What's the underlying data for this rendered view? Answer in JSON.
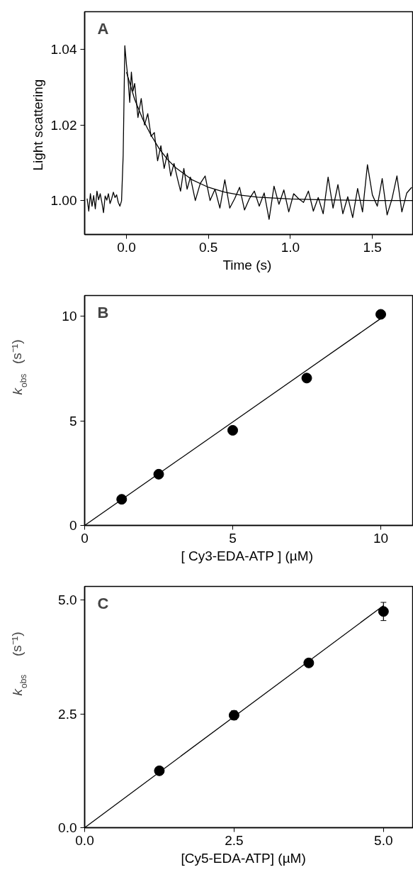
{
  "chart_data": [
    {
      "type": "line",
      "xlabel": "Time  (s)",
      "ylabel": "Light  scattering",
      "annotations": [
        "A"
      ],
      "xlim": [
        -0.255,
        1.75
      ],
      "ylim": [
        0.991,
        1.05
      ],
      "xticks": [
        {
          "value": 0,
          "label": "0.0"
        },
        0.5,
        {
          "value": 1,
          "label": "1.0"
        },
        1.5
      ],
      "yticks": [
        {
          "value": 1,
          "label": "1.00"
        },
        1.02,
        1.04
      ],
      "grid": false,
      "series": [
        {
          "color": "#000000",
          "x": [
            -0.24,
            -0.23,
            -0.22,
            -0.21,
            -0.2,
            -0.19,
            -0.18,
            -0.17,
            -0.16,
            -0.15,
            -0.14,
            -0.13,
            -0.12,
            -0.11,
            -0.1,
            -0.09,
            -0.08,
            -0.07,
            -0.06,
            -0.05,
            -0.04,
            -0.03,
            -0.02,
            -0.01,
            0.0,
            0.01,
            0.02,
            0.03,
            0.04,
            0.05,
            0.07,
            0.09,
            0.11,
            0.13,
            0.15,
            0.17,
            0.19,
            0.21,
            0.23,
            0.25,
            0.27,
            0.29,
            0.31,
            0.33,
            0.35,
            0.37,
            0.39,
            0.42,
            0.45,
            0.48,
            0.51,
            0.54,
            0.57,
            0.6,
            0.63,
            0.66,
            0.69,
            0.72,
            0.75,
            0.78,
            0.81,
            0.84,
            0.87,
            0.9,
            0.93,
            0.96,
            0.99,
            1.02,
            1.05,
            1.08,
            1.11,
            1.14,
            1.17,
            1.2,
            1.23,
            1.26,
            1.29,
            1.32,
            1.35,
            1.38,
            1.41,
            1.44,
            1.47,
            1.5,
            1.53,
            1.56,
            1.59,
            1.62,
            1.65,
            1.68,
            1.71,
            1.74
          ],
          "values": [
            1.0005,
            0.9972,
            1.0018,
            0.9985,
            1.0013,
            0.9978,
            1.0025,
            1.0002,
            1.0018,
            0.9995,
            0.9968,
            1.0012,
            1.0001,
            1.0018,
            0.9992,
            1.0005,
            1.0022,
            1.0008,
            1.0015,
            0.9995,
            0.9985,
            0.9999,
            1.012,
            1.041,
            1.036,
            1.032,
            1.026,
            1.034,
            1.029,
            1.031,
            1.022,
            1.027,
            1.02,
            1.023,
            1.017,
            1.018,
            1.0105,
            1.0145,
            1.0085,
            1.0125,
            1.0065,
            1.0098,
            1.006,
            1.0025,
            1.0085,
            1.003,
            1.0062,
            1.0,
            1.0045,
            1.0065,
            1.0,
            1.003,
            0.998,
            1.0055,
            0.998,
            1.0005,
            1.0035,
            0.9975,
            1.0005,
            1.0025,
            0.9985,
            1.002,
            0.995,
            1.0038,
            0.999,
            1.0028,
            0.997,
            1.0018,
            1.0005,
            0.9995,
            1.0025,
            0.9972,
            1.0008,
            0.9965,
            1.0062,
            0.998,
            1.0042,
            0.9965,
            1.001,
            0.9955,
            1.0032,
            0.997,
            1.0095,
            1.0015,
            0.9985,
            1.0058,
            0.9962,
            1.0005,
            1.0065,
            0.997,
            1.002,
            1.0035
          ]
        },
        {
          "color": "#000000",
          "x": [
            0.0,
            0.05,
            0.1,
            0.15,
            0.2,
            0.25,
            0.3,
            0.4,
            0.5,
            0.6,
            0.7,
            0.8,
            1.0,
            1.2,
            1.5,
            1.75
          ],
          "values": [
            1.034,
            1.0268,
            1.0215,
            1.0173,
            1.0137,
            1.0109,
            1.0087,
            1.0055,
            1.0035,
            1.0022,
            1.0014,
            1.0009,
            1.0004,
            1.0002,
            1.0,
            1.0
          ]
        }
      ]
    },
    {
      "type": "scatter",
      "xlabel": "[ Cy3-EDA-ATP ]  (µM)",
      "ylabel": "k$_{obs}$  (s⁻¹)",
      "annotations": [
        "B"
      ],
      "xlim": [
        0,
        11.1
      ],
      "ylim": [
        0,
        11
      ],
      "xticks": [
        0,
        5,
        10
      ],
      "yticks": [
        0,
        5,
        10
      ],
      "grid": false,
      "marker": "circle",
      "series": [
        {
          "color": "#000000",
          "x": [
            1.25,
            2.5,
            5,
            7.5,
            10
          ],
          "values": [
            1.25,
            2.45,
            4.55,
            7.05,
            10.1
          ]
        },
        {
          "type": "line",
          "color": "#000000",
          "marker": "none",
          "x": [
            0,
            10
          ],
          "values": [
            0,
            9.9
          ]
        }
      ]
    },
    {
      "type": "scatter",
      "xlabel": "[Cy5-EDA-ATP]    (µM)",
      "ylabel": "k$_{obs}$    (s⁻¹)",
      "annotations": [
        "C"
      ],
      "xlim": [
        0,
        5.5
      ],
      "ylim": [
        0,
        5.3
      ],
      "xticks": [
        {
          "value": 0,
          "label": "0.0"
        },
        2.5,
        {
          "value": 5,
          "label": "5.0"
        }
      ],
      "yticks": [
        {
          "value": 0,
          "label": "0.0"
        },
        2.5,
        {
          "value": 5,
          "label": "5.0"
        }
      ],
      "grid": false,
      "marker": "circle",
      "series": [
        {
          "color": "#000000",
          "x": [
            1.25,
            2.5,
            3.75,
            5
          ],
          "values": [
            1.25,
            2.47,
            3.62,
            4.75
          ],
          "errors": [
            null,
            0.1,
            null,
            0.2
          ]
        },
        {
          "type": "line",
          "color": "#000000",
          "marker": "none",
          "x": [
            0,
            5
          ],
          "values": [
            0,
            4.88
          ]
        }
      ]
    }
  ]
}
